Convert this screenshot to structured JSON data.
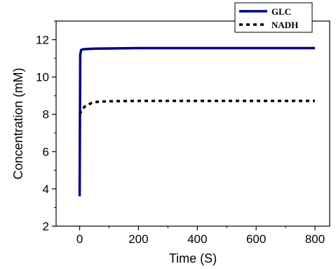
{
  "chart_data": {
    "type": "line",
    "xlabel": "Time  (S)",
    "ylabel": "Concentration (mM)",
    "xlim": [
      -80,
      850
    ],
    "ylim": [
      2,
      13
    ],
    "xticks": [
      0,
      200,
      400,
      600,
      800
    ],
    "yticks": [
      2,
      4,
      6,
      8,
      10,
      12
    ],
    "grid": false,
    "legend_position": "top-right",
    "series": [
      {
        "name": "GLC",
        "color": "#000080",
        "style": "solid",
        "x": [
          0,
          2,
          5,
          10,
          20,
          50,
          100,
          200,
          400,
          600,
          800
        ],
        "y": [
          3.6,
          11.2,
          11.45,
          11.48,
          11.5,
          11.52,
          11.53,
          11.55,
          11.55,
          11.55,
          11.55
        ]
      },
      {
        "name": "NADH",
        "color": "#000000",
        "style": "dotted",
        "x": [
          0,
          5,
          10,
          20,
          40,
          60,
          100,
          200,
          400,
          600,
          800
        ],
        "y": [
          8.0,
          8.15,
          8.3,
          8.45,
          8.6,
          8.67,
          8.7,
          8.72,
          8.72,
          8.72,
          8.72
        ]
      }
    ]
  }
}
